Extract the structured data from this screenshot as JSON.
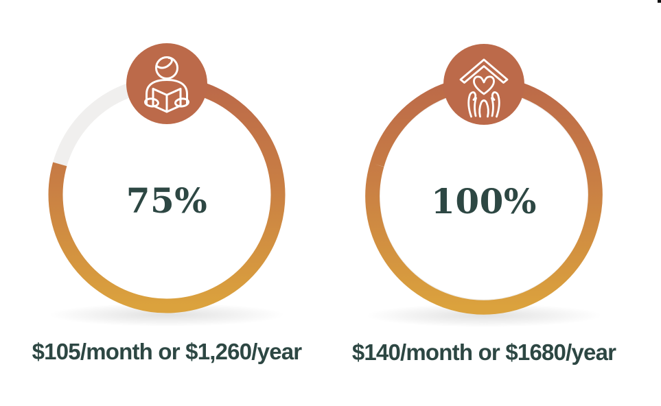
{
  "colors": {
    "background": "#ffffff",
    "terracotta_badge": "#bc6a4a",
    "ring_gradient": [
      "#bc6a49",
      "#c97f44",
      "#dba23d"
    ],
    "track_gray": "#f0efee",
    "text_slate": "#2d4743"
  },
  "chart_data": [
    {
      "type": "pie",
      "style": "donut-progress-ring",
      "value": 75,
      "label": "75%",
      "caption": "$105/month or $1,260/year",
      "icon": "person-reading-book",
      "ring_gradient": [
        "#bc6a49",
        "#c97f44",
        "#dba23d"
      ],
      "track_color": "#f0efee"
    },
    {
      "type": "pie",
      "style": "donut-progress-ring",
      "value": 100,
      "label": "100%",
      "caption": "$140/month or $1680/year",
      "icon": "hands-holding-heart-under-roof",
      "ring_gradient": [
        "#bc6a49",
        "#c97f44",
        "#dba23d"
      ],
      "track_color": "#f0efee"
    }
  ]
}
